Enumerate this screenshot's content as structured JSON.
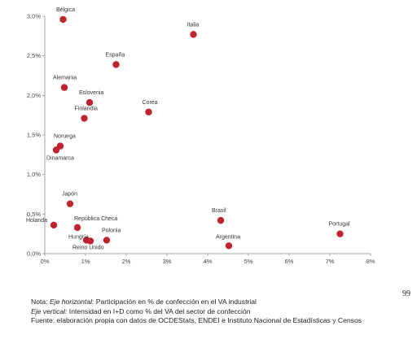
{
  "chart_data": {
    "type": "scatter",
    "title": "",
    "xlabel": "",
    "ylabel": "",
    "xlim": [
      0,
      8
    ],
    "ylim": [
      0,
      3
    ],
    "x_ticks": [
      "0%",
      "1%",
      "2%",
      "3%",
      "4%",
      "5%",
      "6%",
      "7%",
      "8%"
    ],
    "y_ticks": [
      "0,0%",
      "0,5%",
      "1,0%",
      "1,5%",
      "2,0%",
      "2,5%",
      "3,0%"
    ],
    "grid": false,
    "point_color": "#c0222f",
    "points": [
      {
        "label": "Bélgica",
        "x": 0.45,
        "y": 2.96
      },
      {
        "label": "Italia",
        "x": 3.65,
        "y": 2.77
      },
      {
        "label": "España",
        "x": 1.75,
        "y": 2.39
      },
      {
        "label": "Alemania",
        "x": 0.48,
        "y": 2.1
      },
      {
        "label": "Eslovenia",
        "x": 1.1,
        "y": 1.91
      },
      {
        "label": "Finlandia",
        "x": 0.97,
        "y": 1.71
      },
      {
        "label": "Corea",
        "x": 2.55,
        "y": 1.79
      },
      {
        "label": "Noruega",
        "x": 0.38,
        "y": 1.36
      },
      {
        "label": "Dinamarca",
        "x": 0.28,
        "y": 1.31
      },
      {
        "label": "Japón",
        "x": 0.62,
        "y": 0.63
      },
      {
        "label": "Holanda",
        "x": 0.22,
        "y": 0.36
      },
      {
        "label": "República Checa",
        "x": 0.8,
        "y": 0.33
      },
      {
        "label": "Hungría",
        "x": 1.02,
        "y": 0.17
      },
      {
        "label": "Reino Unido",
        "x": 1.12,
        "y": 0.16
      },
      {
        "label": "Polonia",
        "x": 1.52,
        "y": 0.17
      },
      {
        "label": "Brasil",
        "x": 4.32,
        "y": 0.42
      },
      {
        "label": "Argentina",
        "x": 4.52,
        "y": 0.1
      },
      {
        "label": "Portugal",
        "x": 7.25,
        "y": 0.25
      }
    ]
  },
  "page_number": "99",
  "notes": {
    "line1_prefix": "Nota: ",
    "line1_em": "Eje horizontal:",
    "line1_text": " Participación en % de confección en el VA industrial",
    "line2_em": "Eje vertical:",
    "line2_text": " Intensidad en I+D como % del VA del sector de confección",
    "line3": "Fuente: elaboración propia con datos de OCDEStats, ENDEI e Instituto Nacional de Estadísticas y Censos"
  }
}
